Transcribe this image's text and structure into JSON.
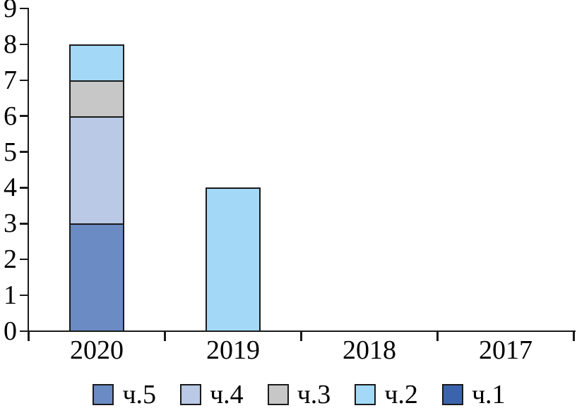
{
  "chart_data": {
    "type": "bar",
    "stacked": true,
    "title": "",
    "xlabel": "",
    "ylabel": "",
    "categories": [
      "2020",
      "2019",
      "2018",
      "2017"
    ],
    "series": [
      {
        "name": "ч.5",
        "color": "#6a8bc4",
        "values": [
          3,
          0,
          0,
          0
        ]
      },
      {
        "name": "ч.4",
        "color": "#b9c9e6",
        "values": [
          3,
          0,
          0,
          0
        ]
      },
      {
        "name": "ч.3",
        "color": "#c7c7c7",
        "values": [
          1,
          0,
          0,
          0
        ]
      },
      {
        "name": "ч.2",
        "color": "#a3d9f7",
        "values": [
          1,
          4,
          0,
          0
        ]
      },
      {
        "name": "ч.1",
        "color": "#3c64ad",
        "values": [
          0,
          0,
          0,
          0
        ]
      }
    ],
    "stack_order_bottom_to_top": [
      "ч.5",
      "ч.4",
      "ч.3",
      "ч.2",
      "ч.1"
    ],
    "legend_order": [
      "ч.5",
      "ч.4",
      "ч.3",
      "ч.2",
      "ч.1"
    ],
    "legend_position": "bottom",
    "ylim": [
      0,
      9
    ],
    "yticks": [
      0,
      1,
      2,
      3,
      4,
      5,
      6,
      7,
      8,
      9
    ],
    "grid": false,
    "axis_color": "#1a1a1a",
    "bar_border_color": "#1a1a1a",
    "totals": {
      "2020": 8,
      "2019": 4,
      "2018": 0,
      "2017": 0
    }
  }
}
